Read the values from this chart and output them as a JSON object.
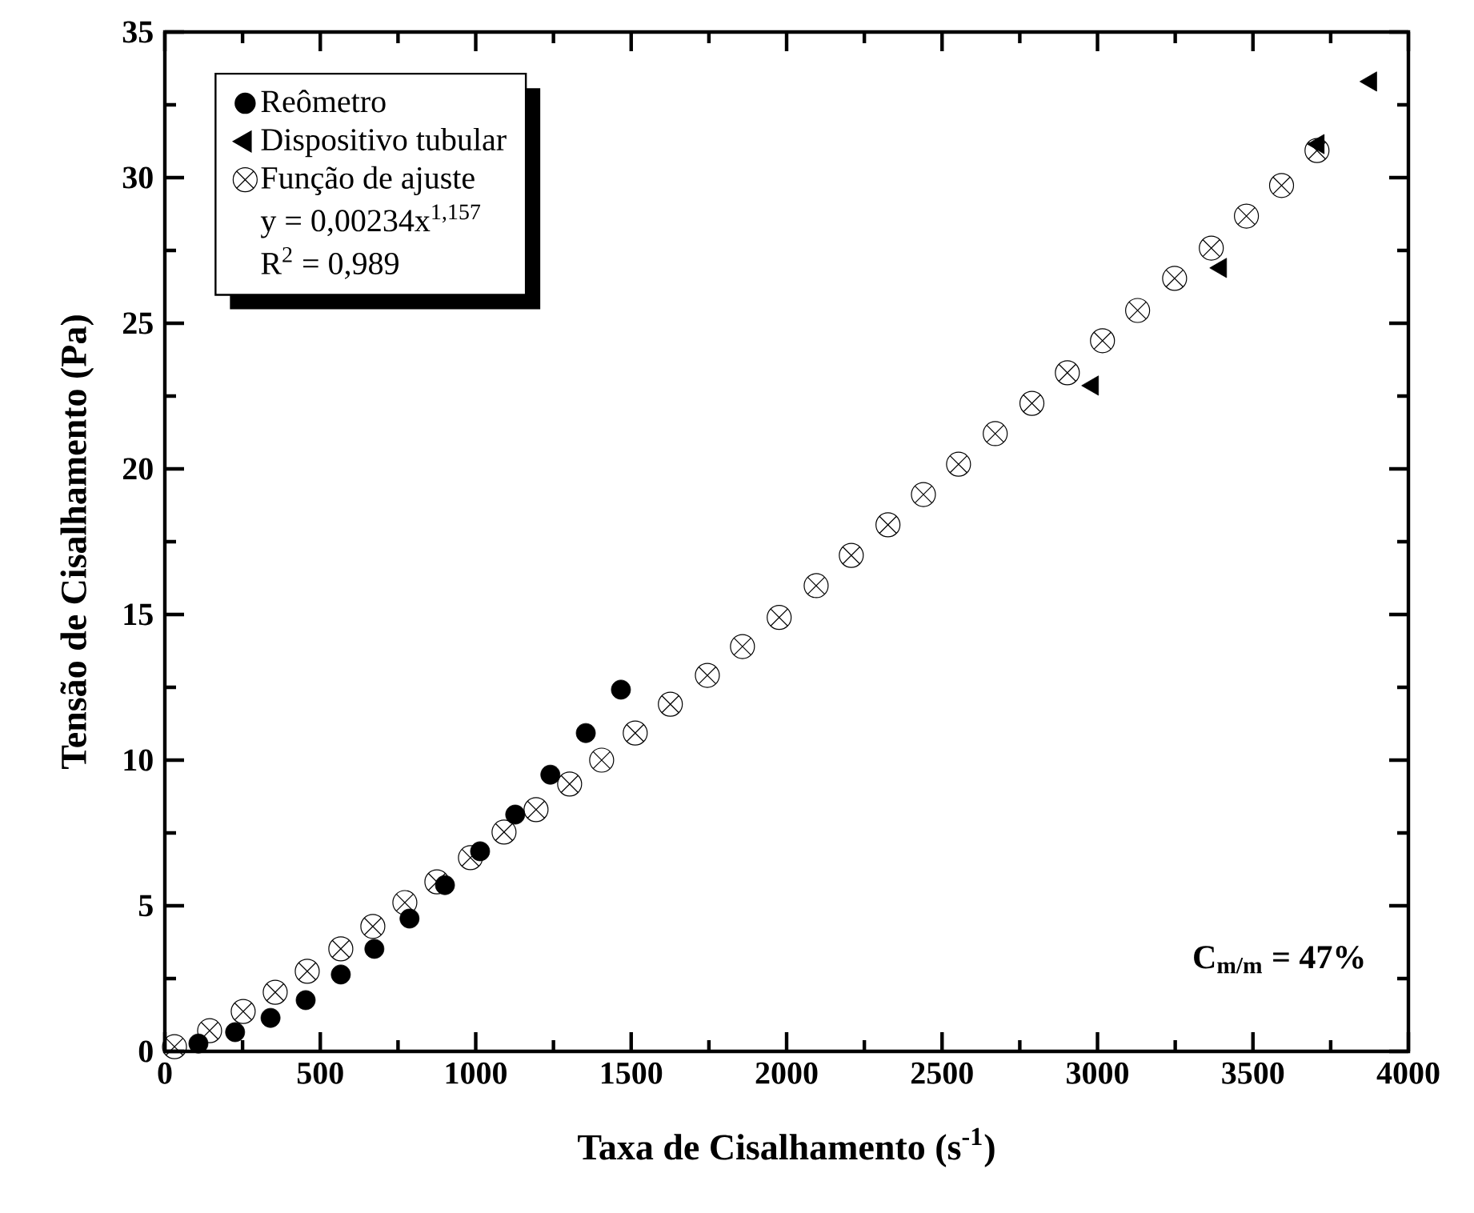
{
  "chart_data": {
    "type": "scatter",
    "xlabel": "Taxa de Cisalhamento (s$^{-1}$)",
    "ylabel": "Tensão de Cisalhamento (Pa)",
    "xlim": [
      0,
      4000
    ],
    "ylim": [
      0,
      35
    ],
    "xticks": [
      0,
      500,
      1000,
      1500,
      2000,
      2500,
      3000,
      3500,
      4000
    ],
    "yticks": [
      0,
      5,
      10,
      15,
      20,
      25,
      30,
      35
    ],
    "legend": "top left",
    "annotations": [
      "y = 0,00234x$^{1,157}$",
      "R$^{2}$ = 0,989",
      "C$_{m/m}$ = 47%"
    ],
    "series": [
      {
        "name": "Reômetro",
        "color": "#000000",
        "marker": "circle",
        "x": [
          108,
          226,
          340,
          453,
          566,
          674,
          787,
          901,
          1014,
          1127,
          1240,
          1354,
          1467
        ],
        "values": [
          0.27,
          0.66,
          1.15,
          1.76,
          2.64,
          3.52,
          4.56,
          5.71,
          6.87,
          8.13,
          9.5,
          10.93,
          12.42
        ]
      },
      {
        "name": "Dispositivo tubular",
        "color": "#000000",
        "marker": "triangle",
        "x": [
          2985,
          3397,
          3711,
          3880
        ],
        "values": [
          22.86,
          26.9,
          31.15,
          33.3
        ]
      },
      {
        "name": "Função de ajuste",
        "color": "#000000",
        "marker": "cross",
        "x": [
          31,
          144,
          252,
          355,
          458,
          566,
          669,
          772,
          875,
          983,
          1091,
          1194,
          1302,
          1405,
          1513,
          1626,
          1745,
          1858,
          1976,
          2095,
          2208,
          2326,
          2440,
          2553,
          2671,
          2789,
          2903,
          3016,
          3129,
          3248,
          3366,
          3479,
          3592,
          3706
        ],
        "values": [
          0.16,
          0.71,
          1.37,
          2.03,
          2.75,
          3.52,
          4.29,
          5.11,
          5.82,
          6.65,
          7.53,
          8.3,
          9.18,
          10.0,
          10.93,
          11.92,
          12.91,
          13.9,
          14.9,
          15.99,
          17.03,
          18.08,
          19.12,
          20.16,
          21.21,
          22.25,
          23.3,
          24.4,
          25.44,
          26.54,
          27.58,
          28.68,
          29.73,
          30.93
        ]
      }
    ]
  }
}
